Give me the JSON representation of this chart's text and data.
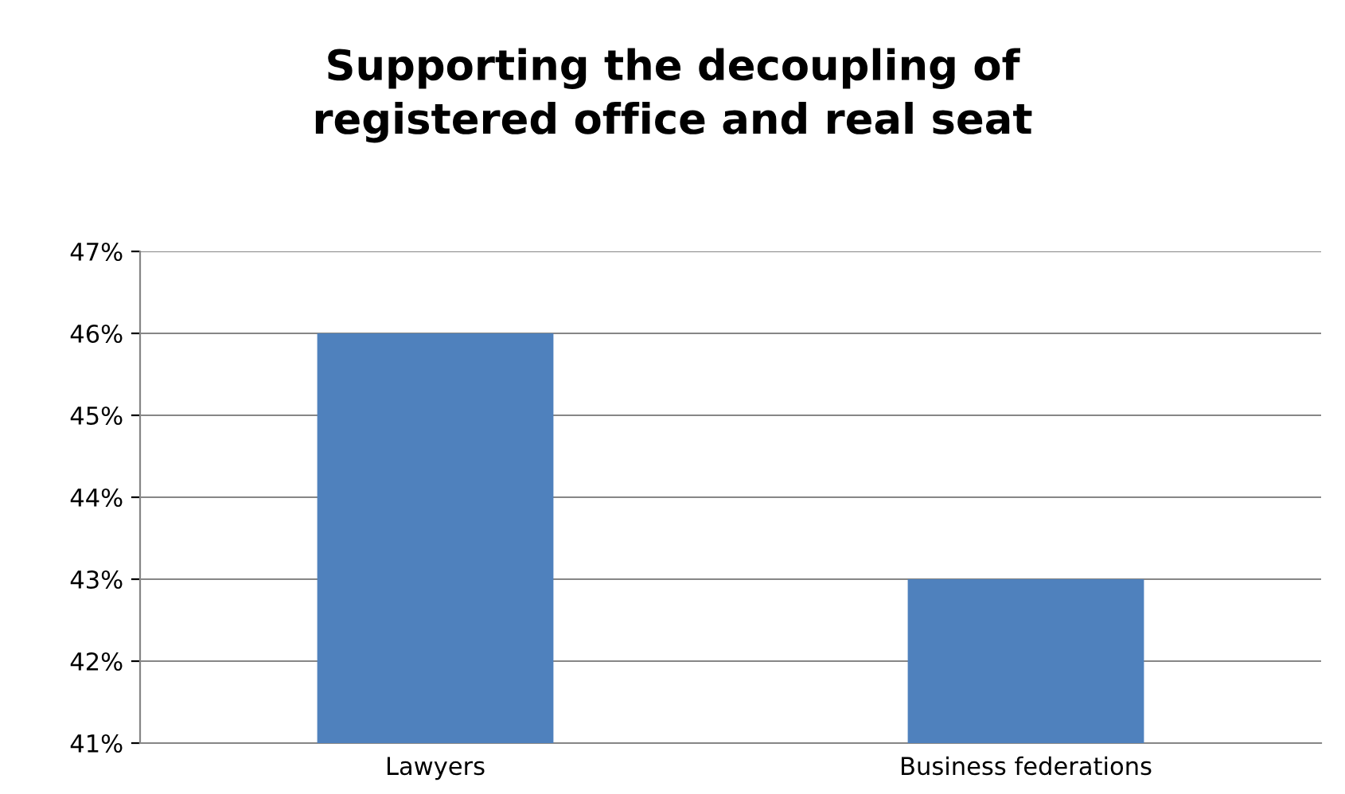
{
  "chart_data": {
    "type": "bar",
    "title": "Supporting the decoupling of\nregistered office and real seat",
    "categories": [
      "Lawyers",
      "Business federations"
    ],
    "values": [
      46,
      43
    ],
    "color": "#4f81bd",
    "ylim": [
      41,
      47
    ],
    "yticks": [
      {
        "value": 41,
        "label": "41%"
      },
      {
        "value": 42,
        "label": "42%"
      },
      {
        "value": 43,
        "label": "43%"
      },
      {
        "value": 44,
        "label": "44%"
      },
      {
        "value": 45,
        "label": "45%"
      },
      {
        "value": 46,
        "label": "46%"
      },
      {
        "value": 47,
        "label": "47%"
      }
    ],
    "grid": "y"
  }
}
